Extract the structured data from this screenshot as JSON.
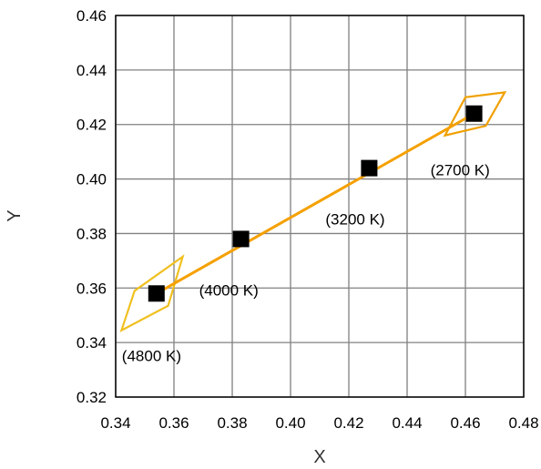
{
  "chart_data": {
    "type": "scatter",
    "xlabel": "X",
    "ylabel": "Y",
    "xlim": [
      0.34,
      0.48
    ],
    "ylim": [
      0.32,
      0.46
    ],
    "xticks": [
      "0.34",
      "0.36",
      "0.38",
      "0.40",
      "0.42",
      "0.44",
      "0.46",
      "0.48"
    ],
    "yticks": [
      "0.32",
      "0.34",
      "0.36",
      "0.38",
      "0.40",
      "0.42",
      "0.44",
      "0.46"
    ],
    "grid": true,
    "series": [
      {
        "points": [
          {
            "x": 0.354,
            "y": 0.358,
            "label": "(4800 K)"
          },
          {
            "x": 0.383,
            "y": 0.378,
            "label": "(4000 K)"
          },
          {
            "x": 0.427,
            "y": 0.404,
            "label": "(3200 K)"
          },
          {
            "x": 0.463,
            "y": 0.424,
            "label": "(2700 K)"
          }
        ]
      }
    ],
    "line": {
      "points": [
        [
          0.354,
          0.358
        ],
        [
          0.463,
          0.424
        ]
      ],
      "color": "#f5a000"
    },
    "quadrangles": [
      {
        "color": "#f0c020",
        "vertices": [
          [
            0.3465,
            0.359
          ],
          [
            0.363,
            0.3715
          ],
          [
            0.358,
            0.3535
          ],
          [
            0.342,
            0.3445
          ]
        ]
      },
      {
        "color": "#f0a000",
        "vertices": [
          [
            0.46,
            0.43
          ],
          [
            0.4735,
            0.4318
          ],
          [
            0.467,
            0.4195
          ],
          [
            0.453,
            0.416
          ]
        ]
      }
    ],
    "colors": {
      "marker": "#000000",
      "grid": "#808080",
      "axis": "#000000"
    }
  }
}
